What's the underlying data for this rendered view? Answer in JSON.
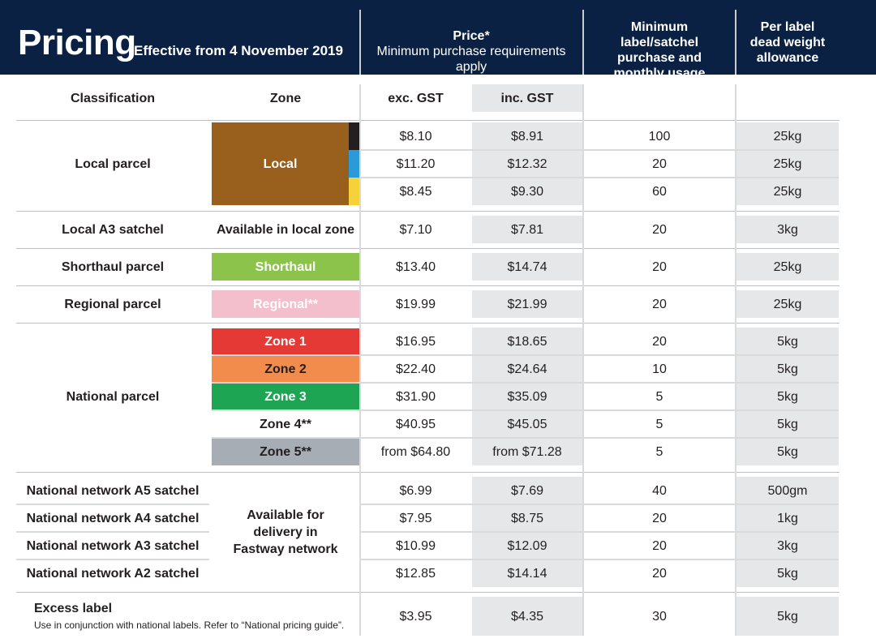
{
  "header": {
    "title": "Pricing",
    "effective": "Effective from 4 November 2019",
    "price_title": "Price*",
    "price_subtitle": "Minimum purchase requirements apply",
    "min_label": "Minimum label/satchel purchase and monthly usage",
    "weight_label": "Per label dead weight allowance"
  },
  "columns": {
    "classification": "Classification",
    "zone": "Zone",
    "exc": "exc. GST",
    "inc": "inc. GST"
  },
  "colors": {
    "navy": "#0b2143",
    "local": "#99601d",
    "local_black": "#231f20",
    "local_blue": "#2a9ad8",
    "local_yellow": "#f5d23a",
    "shorthaul": "#8cc34b",
    "regional": "#f4bfcd",
    "zone1": "#e53935",
    "zone2": "#f28c4c",
    "zone3": "#1ea554",
    "zone5": "#a6adb4"
  },
  "local": {
    "classification": "Local parcel",
    "zone": "Local",
    "rows": [
      {
        "exc": "$8.10",
        "inc": "$8.91",
        "min": "100",
        "weight": "25kg"
      },
      {
        "exc": "$11.20",
        "inc": "$12.32",
        "min": "20",
        "weight": "25kg"
      },
      {
        "exc": "$8.45",
        "inc": "$9.30",
        "min": "60",
        "weight": "25kg"
      }
    ]
  },
  "local_a3": {
    "classification": "Local A3 satchel",
    "zone": "Available in local zone",
    "exc": "$7.10",
    "inc": "$7.81",
    "min": "20",
    "weight": "3kg"
  },
  "shorthaul": {
    "classification": "Shorthaul parcel",
    "zone": "Shorthaul",
    "exc": "$13.40",
    "inc": "$14.74",
    "min": "20",
    "weight": "25kg"
  },
  "regional": {
    "classification": "Regional parcel",
    "zone": "Regional**",
    "exc": "$19.99",
    "inc": "$21.99",
    "min": "20",
    "weight": "25kg"
  },
  "national": {
    "classification": "National parcel",
    "rows": [
      {
        "zone": "Zone 1",
        "exc": "$16.95",
        "inc": "$18.65",
        "min": "20",
        "weight": "5kg"
      },
      {
        "zone": "Zone 2",
        "exc": "$22.40",
        "inc": "$24.64",
        "min": "10",
        "weight": "5kg"
      },
      {
        "zone": "Zone 3",
        "exc": "$31.90",
        "inc": "$35.09",
        "min": "5",
        "weight": "5kg"
      },
      {
        "zone": "Zone 4**",
        "exc": "$40.95",
        "inc": "$45.05",
        "min": "5",
        "weight": "5kg"
      },
      {
        "zone": "Zone 5**",
        "exc": "from $64.80",
        "inc": "from $71.28",
        "min": "5",
        "weight": "5kg"
      }
    ]
  },
  "network": {
    "zone": "Available for delivery in Fastway network",
    "rows": [
      {
        "classification": "National network A5 satchel",
        "exc": "$6.99",
        "inc": "$7.69",
        "min": "40",
        "weight": "500gm"
      },
      {
        "classification": "National network A4 satchel",
        "exc": "$7.95",
        "inc": "$8.75",
        "min": "20",
        "weight": "1kg"
      },
      {
        "classification": "National network A3 satchel",
        "exc": "$10.99",
        "inc": "$12.09",
        "min": "20",
        "weight": "3kg"
      },
      {
        "classification": "National network A2 satchel",
        "exc": "$12.85",
        "inc": "$14.14",
        "min": "20",
        "weight": "5kg"
      }
    ]
  },
  "excess": {
    "title": "Excess label",
    "note": "Use in conjunction with national labels. Refer to “National pricing guide”.",
    "exc": "$3.95",
    "inc": "$4.35",
    "min": "30",
    "weight": "5kg"
  }
}
